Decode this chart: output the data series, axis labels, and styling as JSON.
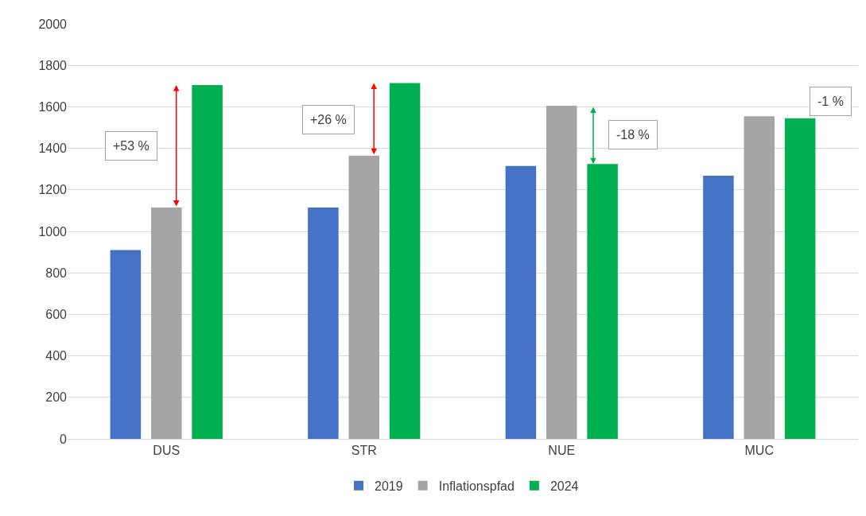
{
  "chart_data": {
    "type": "bar",
    "categories": [
      "DUS",
      "STR",
      "NUE",
      "MUC"
    ],
    "series": [
      {
        "name": "2019",
        "color": "#4472c4",
        "values": [
          910,
          1115,
          1315,
          1268
        ]
      },
      {
        "name": "Inflationspfad",
        "color": "#a5a5a5",
        "values": [
          1115,
          1365,
          1605,
          1555
        ]
      },
      {
        "name": "2024",
        "color": "#00b050",
        "values": [
          1705,
          1715,
          1325,
          1545
        ]
      }
    ],
    "annotations": [
      "+53 %",
      "+26 %",
      "-18 %",
      "-1 %"
    ],
    "ylim": [
      0,
      2000
    ],
    "yticks": [
      0,
      200,
      400,
      600,
      800,
      1000,
      1200,
      1400,
      1600,
      1800,
      2000
    ],
    "grid": "y",
    "legend": "bottom"
  }
}
